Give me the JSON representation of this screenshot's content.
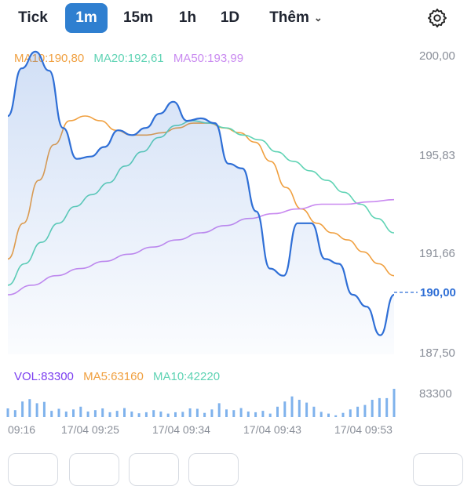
{
  "tabs": [
    {
      "label": "Tick",
      "active": false
    },
    {
      "label": "1m",
      "active": true
    },
    {
      "label": "15m",
      "active": false
    },
    {
      "label": "1h",
      "active": false
    },
    {
      "label": "1D",
      "active": false
    },
    {
      "label": "Thêm",
      "active": false,
      "dropdown": true
    }
  ],
  "settings_icon": "gear-icon",
  "indicators": {
    "ma10": "MA10:190,80",
    "ma20": "MA20:192,61",
    "ma50": "MA50:193,99"
  },
  "y_axis_labels": [
    "200,00",
    "195,83",
    "191,66",
    "187,50"
  ],
  "current_price": "190,00",
  "volume": {
    "vol": "VOL:83300",
    "ma5": "MA5:63160",
    "ma10": "MA10:42220",
    "max_label": "83300",
    "bars": [
      25,
      20,
      45,
      52,
      40,
      44,
      18,
      24,
      16,
      22,
      30,
      16,
      20,
      25,
      14,
      18,
      26,
      16,
      11,
      14,
      20,
      16,
      10,
      14,
      15,
      25,
      24,
      12,
      22,
      40,
      22,
      20,
      26,
      16,
      14,
      18,
      10,
      30,
      45,
      60,
      50,
      42,
      30,
      15,
      10,
      5,
      12,
      22,
      30,
      35,
      50,
      55,
      55,
      82
    ]
  },
  "x_axis_labels": [
    "09:16",
    "17/04 09:25",
    "17/04 09:34",
    "17/04 09:43",
    "17/04 09:53"
  ],
  "colors": {
    "price": "#2f6fd6",
    "ma10": "#f0a040",
    "ma20": "#5fd3b4",
    "ma50": "#c98af0",
    "vol": "#7b3ff0",
    "active_tab": "#2f7fd0"
  },
  "chart_data": {
    "type": "line",
    "ylim": [
      187.5,
      200.0
    ],
    "series": [
      {
        "name": "MA10",
        "values": [
          191.5,
          193.0,
          194.8,
          196.3,
          197.3,
          197.5,
          197.3,
          196.9,
          196.7,
          196.7,
          196.8,
          197.0,
          197.2,
          197.2,
          197.0,
          196.8,
          196.4,
          195.6,
          194.5,
          193.6,
          193.0,
          192.6,
          192.3,
          191.8,
          191.3,
          190.8
        ]
      },
      {
        "name": "MA20",
        "values": [
          190.4,
          191.3,
          192.2,
          193.0,
          193.7,
          194.2,
          194.7,
          195.4,
          196.0,
          196.6,
          197.1,
          197.3,
          197.2,
          197.0,
          196.7,
          196.5,
          196.0,
          195.6,
          195.2,
          194.8,
          194.3,
          193.8,
          193.2,
          192.6
        ]
      },
      {
        "name": "MA50",
        "values": [
          190.0,
          190.4,
          190.8,
          191.1,
          191.4,
          191.7,
          192.0,
          192.3,
          192.6,
          192.9,
          193.2,
          193.4,
          193.6,
          193.8,
          193.8,
          193.9,
          193.99
        ]
      },
      {
        "name": "Price",
        "values": [
          197.5,
          199.5,
          200.2,
          199.4,
          197.0,
          195.7,
          195.8,
          196.2,
          196.9,
          196.7,
          197.0,
          197.6,
          198.1,
          197.3,
          197.4,
          197.2,
          195.5,
          195.3,
          193.5,
          191.1,
          190.8,
          193.0,
          193.0,
          191.5,
          191.3,
          190.0,
          189.5,
          188.3,
          190.0
        ]
      }
    ]
  }
}
